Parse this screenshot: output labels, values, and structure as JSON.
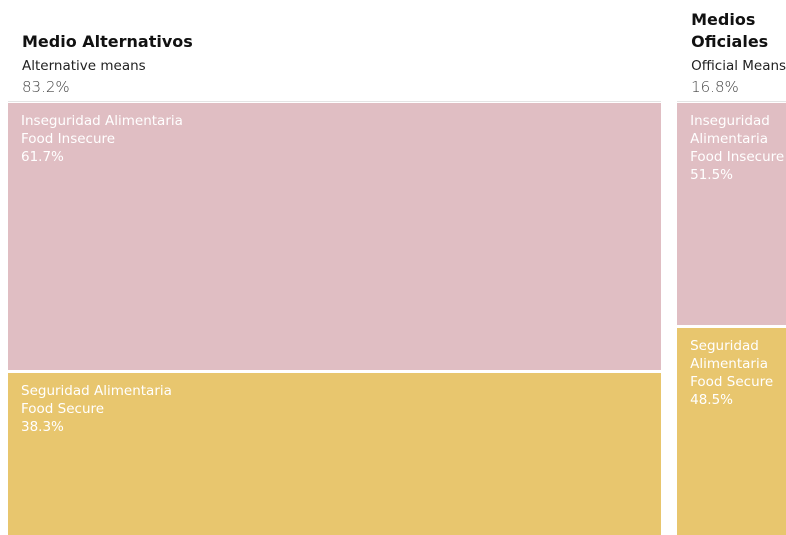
{
  "chart_data": {
    "type": "mekko",
    "categories": [
      "Medio Alternativos",
      "Medios Oficiales"
    ],
    "category_subtitles": [
      "Alternative means",
      "Official Means"
    ],
    "category_values": [
      83.2,
      16.8
    ],
    "category_value_labels": [
      "83.2%",
      "16.8%"
    ],
    "series": [
      {
        "name": "Inseguridad Alimentaria",
        "subtitle": "Food Insecure",
        "color": "#e0bec3",
        "values": [
          61.7,
          51.5
        ],
        "value_labels": [
          "61.7%",
          "51.5%"
        ]
      },
      {
        "name": "Seguridad Alimentaria",
        "subtitle": "Food Secure",
        "color": "#e8c66e",
        "values": [
          38.3,
          48.5
        ],
        "value_labels": [
          "38.3%",
          "48.5%"
        ]
      }
    ]
  }
}
